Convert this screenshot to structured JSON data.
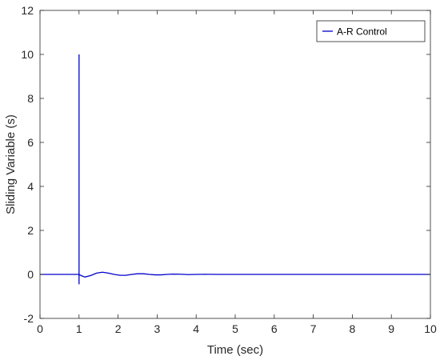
{
  "chart_data": {
    "type": "line",
    "title": "",
    "xlabel": "Time (sec)",
    "ylabel": "Sliding Variable (s)",
    "xlim": [
      0,
      10
    ],
    "ylim": [
      -2,
      12
    ],
    "xticks": [
      0,
      1,
      2,
      3,
      4,
      5,
      6,
      7,
      8,
      9,
      10
    ],
    "yticks": [
      -2,
      0,
      2,
      4,
      6,
      8,
      10,
      12
    ],
    "grid": false,
    "legend_position": "top-right",
    "series": [
      {
        "name": "A-R Control",
        "color": "#0000cc",
        "x": [
          0,
          1.0,
          1.0,
          1.0,
          1.0,
          1.05,
          1.15,
          1.3,
          1.45,
          1.6,
          1.75,
          1.9,
          2.05,
          2.2,
          2.35,
          2.5,
          2.65,
          2.8,
          2.95,
          3.1,
          3.25,
          3.4,
          3.6,
          3.8,
          4.0,
          4.3,
          4.6,
          5.0,
          6.0,
          7.0,
          8.0,
          9.0,
          10.0
        ],
        "y": [
          0,
          0,
          10,
          -0.45,
          0,
          -0.05,
          -0.12,
          -0.05,
          0.06,
          0.1,
          0.06,
          0.0,
          -0.04,
          -0.04,
          0.0,
          0.03,
          0.03,
          0.0,
          -0.02,
          -0.02,
          0.0,
          0.015,
          0.01,
          -0.01,
          0.0,
          0.005,
          0.0,
          0.0,
          0.0,
          0.0,
          0.0,
          0.0,
          0.0
        ]
      }
    ]
  }
}
